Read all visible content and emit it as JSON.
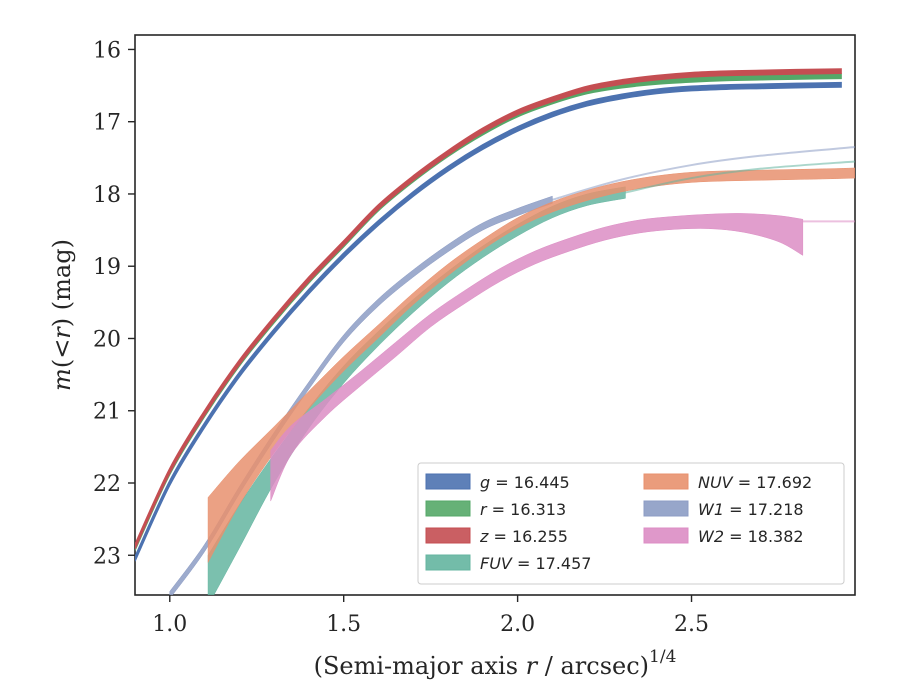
{
  "chart_data": {
    "type": "line",
    "xlabel": "(Semi-major axis r / arcsec)^{1/4}",
    "xlabel_parts": {
      "pre": "(Semi-major axis ",
      "var": "r",
      "mid": " / arcsec)",
      "sup": "1/4"
    },
    "ylabel": "m(<r) (mag)",
    "ylabel_parts": {
      "m": "m",
      "lt": "(<",
      "r": "r",
      "rest": ") (mag)"
    },
    "xlim": [
      0.9,
      2.97
    ],
    "ylim": [
      23.55,
      15.8
    ],
    "y_inverted": true,
    "xticks": [
      1.0,
      1.5,
      2.0,
      2.5
    ],
    "xtick_labels": [
      "1.0",
      "1.5",
      "2.0",
      "2.5"
    ],
    "yticks": [
      16,
      17,
      18,
      19,
      20,
      21,
      22,
      23
    ],
    "ytick_labels": [
      "16",
      "17",
      "18",
      "19",
      "20",
      "21",
      "22",
      "23"
    ],
    "grid": false,
    "legend_position": "lower-right",
    "legend_columns": 2,
    "series": [
      {
        "name": "g",
        "label_var": "g",
        "label_val": " = 16.445",
        "color": "#4c72b0",
        "x": [
          0.9,
          1.0,
          1.1,
          1.2,
          1.3,
          1.4,
          1.5,
          1.6,
          1.7,
          1.8,
          1.9,
          2.0,
          2.1,
          2.2,
          2.3,
          2.4,
          2.5,
          2.6,
          2.7,
          2.8,
          2.93
        ],
        "y": [
          23.05,
          22.0,
          21.2,
          20.5,
          19.9,
          19.35,
          18.85,
          18.4,
          18.0,
          17.65,
          17.35,
          17.1,
          16.9,
          16.75,
          16.65,
          16.58,
          16.54,
          16.52,
          16.51,
          16.5,
          16.49
        ],
        "half_width": 0.03
      },
      {
        "name": "r",
        "label_var": "r",
        "label_val": " = 16.313",
        "color": "#55a868",
        "x": [
          0.9,
          1.0,
          1.1,
          1.2,
          1.3,
          1.4,
          1.5,
          1.6,
          1.7,
          1.8,
          1.9,
          2.0,
          2.1,
          2.2,
          2.3,
          2.4,
          2.5,
          2.6,
          2.7,
          2.8,
          2.93
        ],
        "y": [
          22.9,
          21.85,
          21.05,
          20.35,
          19.75,
          19.2,
          18.7,
          18.2,
          17.8,
          17.45,
          17.15,
          16.9,
          16.72,
          16.58,
          16.5,
          16.45,
          16.42,
          16.4,
          16.39,
          16.38,
          16.37
        ],
        "half_width": 0.03
      },
      {
        "name": "z",
        "label_var": "z",
        "label_val": " = 16.255",
        "color": "#c44e52",
        "x": [
          0.9,
          1.0,
          1.1,
          1.2,
          1.3,
          1.4,
          1.5,
          1.6,
          1.7,
          1.8,
          1.9,
          2.0,
          2.1,
          2.2,
          2.3,
          2.4,
          2.5,
          2.6,
          2.7,
          2.8,
          2.93
        ],
        "y": [
          22.88,
          21.83,
          21.03,
          20.33,
          19.73,
          19.18,
          18.68,
          18.18,
          17.78,
          17.43,
          17.12,
          16.87,
          16.69,
          16.54,
          16.45,
          16.39,
          16.35,
          16.33,
          16.32,
          16.31,
          16.3
        ],
        "half_width": 0.03
      },
      {
        "name": "FUV",
        "label_var": "FUV",
        "label_val": " = 17.457",
        "color": "#64b5a0",
        "x": [
          1.11,
          1.2,
          1.3,
          1.4,
          1.5,
          1.6,
          1.7,
          1.8,
          1.9,
          2.0,
          2.1,
          2.2,
          2.31
        ],
        "y": [
          23.35,
          22.6,
          21.8,
          21.1,
          20.5,
          20.0,
          19.55,
          19.15,
          18.8,
          18.5,
          18.25,
          18.08,
          17.98
        ],
        "half_width": [
          0.35,
          0.3,
          0.2,
          0.14,
          0.12,
          0.1,
          0.09,
          0.08,
          0.08,
          0.08,
          0.08,
          0.08,
          0.08
        ]
      },
      {
        "name": "NUV",
        "label_var": "NUV",
        "label_val": " = 17.692",
        "color": "#e8916e",
        "x": [
          1.11,
          1.2,
          1.3,
          1.4,
          1.5,
          1.6,
          1.7,
          1.8,
          1.9,
          2.0,
          2.1,
          2.2,
          2.3,
          2.4,
          2.5,
          2.6,
          2.7,
          2.8,
          2.9,
          2.97
        ],
        "y": [
          22.65,
          22.0,
          21.4,
          20.85,
          20.35,
          19.9,
          19.45,
          19.05,
          18.7,
          18.4,
          18.18,
          18.02,
          17.9,
          17.82,
          17.77,
          17.75,
          17.74,
          17.73,
          17.72,
          17.71
        ],
        "half_width": [
          0.45,
          0.3,
          0.18,
          0.12,
          0.1,
          0.09,
          0.08,
          0.08,
          0.07,
          0.07,
          0.07,
          0.07,
          0.07,
          0.07,
          0.07,
          0.07,
          0.07,
          0.07,
          0.07,
          0.07
        ]
      },
      {
        "name": "W1",
        "label_var": "W1",
        "label_val": " = 17.218",
        "color": "#8c9cc4",
        "x": [
          1.0,
          1.1,
          1.2,
          1.3,
          1.4,
          1.5,
          1.6,
          1.7,
          1.8,
          1.9,
          2.0,
          2.1
        ],
        "y": [
          23.55,
          22.9,
          22.1,
          21.35,
          20.65,
          20.0,
          19.5,
          19.1,
          18.75,
          18.45,
          18.25,
          18.08
        ],
        "half_width": 0.05,
        "extension": {
          "x": [
            2.1,
            2.3,
            2.5,
            2.7,
            2.97
          ],
          "y": [
            18.08,
            17.8,
            17.6,
            17.47,
            17.35
          ]
        }
      },
      {
        "name": "W2",
        "label_var": "W2",
        "label_val": " = 18.382",
        "color": "#dc8dc4",
        "x": [
          1.29,
          1.35,
          1.45,
          1.55,
          1.65,
          1.75,
          1.85,
          1.95,
          2.05,
          2.15,
          2.25,
          2.35,
          2.45,
          2.55,
          2.65,
          2.75,
          2.82
        ],
        "y": [
          21.9,
          21.4,
          20.95,
          20.55,
          20.15,
          19.75,
          19.42,
          19.12,
          18.88,
          18.7,
          18.55,
          18.45,
          18.4,
          18.38,
          18.4,
          18.48,
          18.6
        ],
        "half_width": [
          0.35,
          0.2,
          0.12,
          0.1,
          0.1,
          0.09,
          0.09,
          0.09,
          0.09,
          0.09,
          0.09,
          0.09,
          0.09,
          0.1,
          0.13,
          0.18,
          0.25
        ],
        "extension": {
          "x": [
            2.82,
            2.97
          ],
          "y": [
            18.38,
            18.38
          ]
        }
      },
      {
        "name": "FUV-ext",
        "legend": false,
        "color": "#64b5a0",
        "x": [
          2.31,
          2.5,
          2.7,
          2.97
        ],
        "y": [
          17.98,
          17.78,
          17.65,
          17.55
        ],
        "line_only": true
      }
    ]
  }
}
